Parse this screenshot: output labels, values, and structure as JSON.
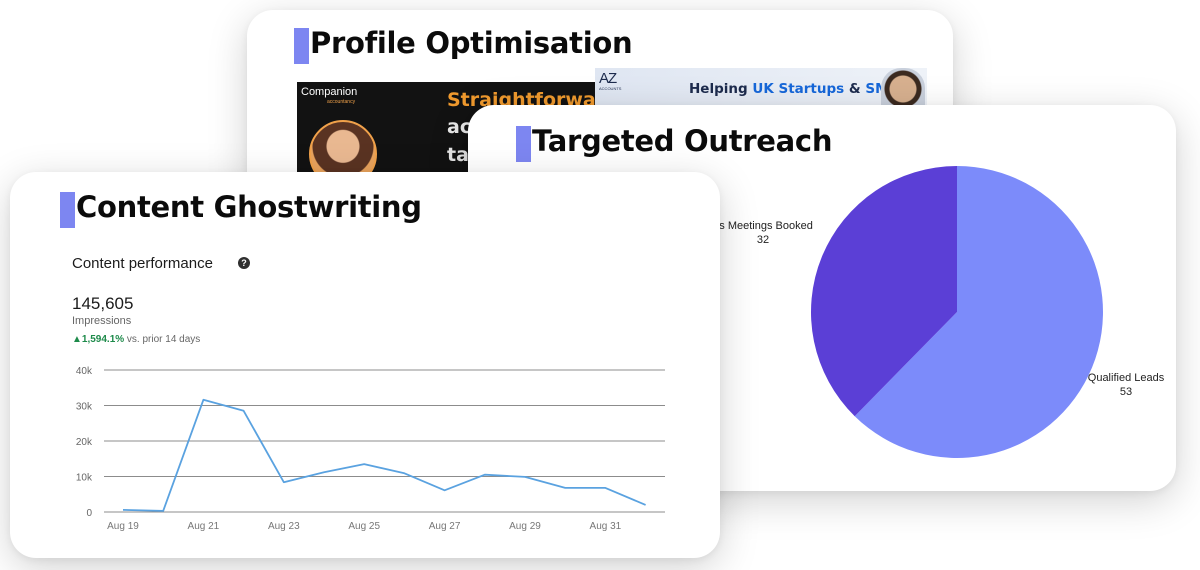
{
  "cards": {
    "profile": {
      "title": "Profile Optimisation",
      "banner_left": {
        "brand": "Companion",
        "brand_sub": "accountancy",
        "headline": "Straightforwar",
        "lines": [
          "ac",
          "ta"
        ]
      },
      "banner_right": {
        "logo": "AZ",
        "logo_sub": "ACCOUNTS",
        "text_pre": "Helping ",
        "text_hl1": "UK Startups",
        "text_mid": " & ",
        "text_hl2": "SMEs"
      }
    },
    "outreach": {
      "title": "Targeted Outreach"
    },
    "content": {
      "title": "Content Ghostwriting",
      "panel_title": "Content performance",
      "help_glyph": "?",
      "metric_value": "145,605",
      "metric_label": "Impressions",
      "delta_value": "▲1,594.1%",
      "delta_label": " vs. prior 14 days"
    }
  },
  "chart_data": [
    {
      "type": "line",
      "title": "Content performance",
      "x": [
        "Aug 19",
        "Aug 20",
        "Aug 21",
        "Aug 22",
        "Aug 23",
        "Aug 24",
        "Aug 25",
        "Aug 26",
        "Aug 27",
        "Aug 28",
        "Aug 29",
        "Aug 30",
        "Aug 31",
        "Sep 1"
      ],
      "x_tick_labels": [
        "Aug 19",
        "Aug 21",
        "Aug 23",
        "Aug 25",
        "Aug 27",
        "Aug 29",
        "Aug 31"
      ],
      "series": [
        {
          "values": [
            600,
            300,
            31600,
            28500,
            8400,
            11200,
            13500,
            10900,
            6100,
            10500,
            9900,
            6800,
            6800,
            2000
          ],
          "color": "#5aa2e0"
        }
      ],
      "y_ticks": [
        0,
        10000,
        20000,
        30000,
        40000
      ],
      "y_tick_labels": [
        "0",
        "10k",
        "20k",
        "30k",
        "40k"
      ],
      "ylim": [
        0,
        40000
      ],
      "grid": true
    },
    {
      "type": "pie",
      "slices": [
        {
          "label": "Qualified Leads",
          "value": 53,
          "color": "#7c8bfa"
        },
        {
          "label": "Sales Meetings Booked",
          "value": 32,
          "color": "#5b3fd6"
        }
      ],
      "label_values": [
        "53",
        "32"
      ],
      "visible_labels": [
        "Qualified Leads",
        "es Meetings Booked"
      ]
    }
  ],
  "colors": {
    "title_bar": "#7d86f1",
    "gridline": "#8c8c8c",
    "delta_up": "#1d8a4a"
  }
}
